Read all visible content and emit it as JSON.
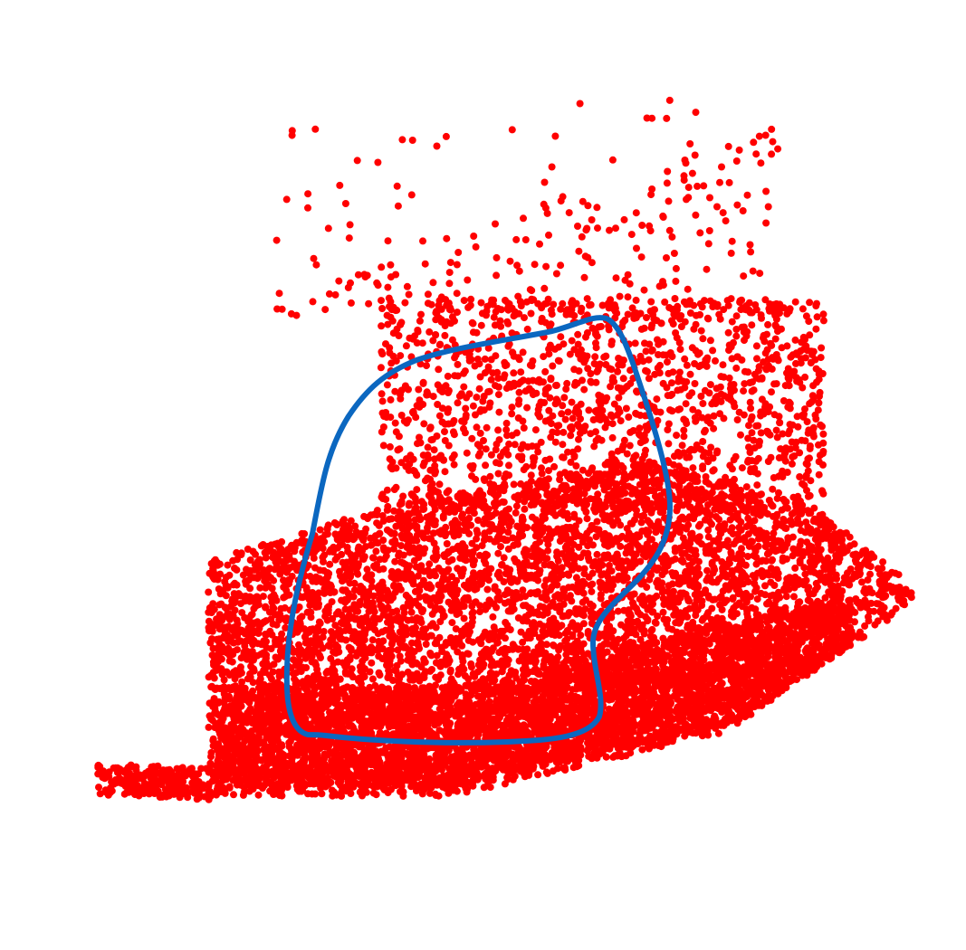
{
  "colors": {
    "background": "#ffffff",
    "points": "#ff0000",
    "boundary": "#0b67c0"
  },
  "map": {
    "point_layer_name": "red-point-cloud",
    "boundary_layer_name": "blue-region-boundary"
  }
}
